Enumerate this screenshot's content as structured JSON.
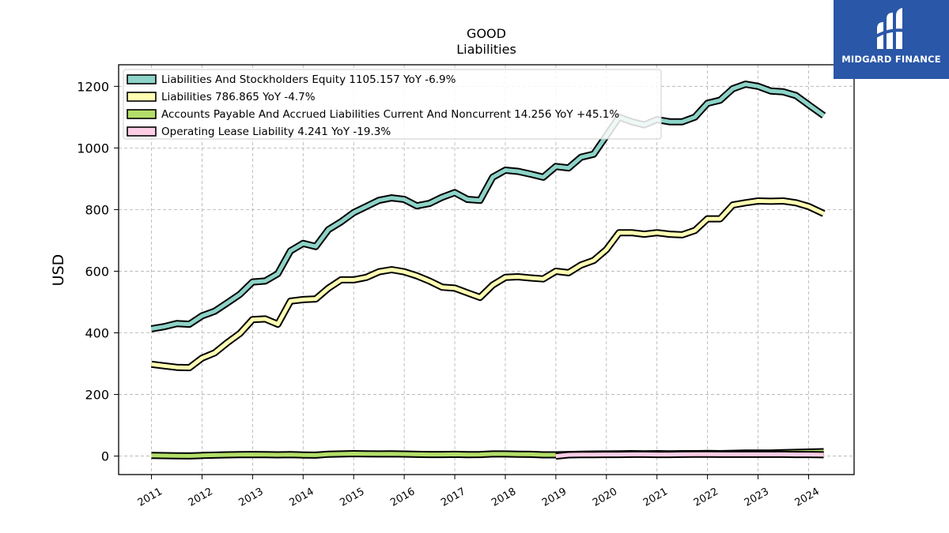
{
  "brand": {
    "name": "MIDGARD FINANCE",
    "color": "#2a57a7"
  },
  "chart_data": {
    "type": "line",
    "title": "GOOD",
    "subtitle": "Liabilities",
    "ylabel": "USD",
    "xlabel": "",
    "ylim": [
      -60,
      1270
    ],
    "xlim": [
      2010.35,
      2024.9
    ],
    "yticks": [
      0,
      200,
      400,
      600,
      800,
      1000,
      1200
    ],
    "xticks": [
      "2011",
      "2012",
      "2013",
      "2014",
      "2015",
      "2016",
      "2017",
      "2018",
      "2019",
      "2020",
      "2021",
      "2022",
      "2023",
      "2024"
    ],
    "grid": true,
    "legend_position": "top-left",
    "series": [
      {
        "name": "Liabilities And Stockholders Equity",
        "legend": "Liabilities And Stockholders Equity  1105.157 YoY -6.9%",
        "color": "#8dd3c7",
        "x": [
          2011.0,
          2011.25,
          2011.5,
          2011.75,
          2012.0,
          2012.25,
          2012.5,
          2012.75,
          2013.0,
          2013.25,
          2013.5,
          2013.75,
          2014.0,
          2014.25,
          2014.5,
          2014.75,
          2015.0,
          2015.25,
          2015.5,
          2015.75,
          2016.0,
          2016.25,
          2016.5,
          2016.75,
          2017.0,
          2017.25,
          2017.5,
          2017.75,
          2018.0,
          2018.25,
          2018.5,
          2018.75,
          2019.0,
          2019.25,
          2019.5,
          2019.75,
          2020.0,
          2020.25,
          2020.5,
          2020.75,
          2021.0,
          2021.25,
          2021.5,
          2021.75,
          2022.0,
          2022.25,
          2022.5,
          2022.75,
          2023.0,
          2023.25,
          2023.5,
          2023.75,
          2024.0,
          2024.3
        ],
        "values": [
          413,
          420,
          430,
          428,
          455,
          470,
          497,
          525,
          565,
          568,
          592,
          666,
          690,
          680,
          735,
          760,
          790,
          810,
          830,
          838,
          833,
          812,
          820,
          840,
          855,
          833,
          830,
          905,
          928,
          924,
          915,
          905,
          940,
          935,
          970,
          980,
          1040,
          1100,
          1085,
          1075,
          1092,
          1085,
          1085,
          1100,
          1145,
          1155,
          1192,
          1207,
          1200,
          1185,
          1182,
          1170,
          1140,
          1105
        ]
      },
      {
        "name": "Liabilities",
        "legend": "Liabilities  786.865 YoY -4.7%",
        "color": "#ffffb3",
        "x": [
          2011.0,
          2011.25,
          2011.5,
          2011.75,
          2012.0,
          2012.25,
          2012.5,
          2012.75,
          2013.0,
          2013.25,
          2013.5,
          2013.75,
          2014.0,
          2014.25,
          2014.5,
          2014.75,
          2015.0,
          2015.25,
          2015.5,
          2015.75,
          2016.0,
          2016.25,
          2016.5,
          2016.75,
          2017.0,
          2017.25,
          2017.5,
          2017.75,
          2018.0,
          2018.25,
          2018.5,
          2018.75,
          2019.0,
          2019.25,
          2019.5,
          2019.75,
          2020.0,
          2020.25,
          2020.5,
          2020.75,
          2021.0,
          2021.25,
          2021.5,
          2021.75,
          2022.0,
          2022.25,
          2022.5,
          2022.75,
          2023.0,
          2023.25,
          2023.5,
          2023.75,
          2024.0,
          2024.3
        ],
        "values": [
          298,
          293,
          288,
          287,
          318,
          335,
          368,
          398,
          443,
          445,
          428,
          503,
          508,
          510,
          545,
          572,
          572,
          580,
          598,
          605,
          598,
          585,
          568,
          548,
          545,
          530,
          515,
          555,
          580,
          582,
          578,
          575,
          600,
          595,
          620,
          635,
          670,
          725,
          725,
          720,
          725,
          720,
          718,
          732,
          770,
          770,
          815,
          822,
          828,
          827,
          828,
          822,
          810,
          787
        ]
      },
      {
        "name": "Accounts Payable And Accrued Liabilities Current And Noncurrent",
        "legend": "Accounts Payable And Accrued Liabilities Current And Noncurrent  14.256 YoY +45.1%",
        "color": "#b3de69",
        "x": [
          2011.0,
          2011.25,
          2011.5,
          2011.75,
          2012.0,
          2012.25,
          2012.5,
          2012.75,
          2013.0,
          2013.25,
          2013.5,
          2013.75,
          2014.0,
          2014.25,
          2014.5,
          2014.75,
          2015.0,
          2015.25,
          2015.5,
          2015.75,
          2016.0,
          2016.25,
          2016.5,
          2016.75,
          2017.0,
          2017.25,
          2017.5,
          2017.75,
          2018.0,
          2018.25,
          2018.5,
          2018.75,
          2019.0,
          2019.25,
          2019.5,
          2019.75,
          2020.0,
          2020.25,
          2020.5,
          2020.75,
          2021.0,
          2021.25,
          2021.5,
          2021.75,
          2022.0,
          2022.25,
          2022.5,
          2022.75,
          2023.0,
          2023.25,
          2023.5,
          2023.75,
          2024.0,
          2024.3
        ],
        "values": [
          2,
          1.5,
          1,
          0.5,
          2,
          3,
          4,
          4.5,
          5,
          4.5,
          4,
          4.5,
          3.5,
          3,
          6,
          7,
          8,
          7.5,
          7,
          7.5,
          6.5,
          5.5,
          5,
          5,
          5.5,
          4.5,
          5,
          7,
          7,
          6,
          5.5,
          4,
          4,
          5,
          6,
          6.5,
          7,
          7.5,
          8,
          7.5,
          8,
          7.5,
          8,
          8,
          8.5,
          8,
          9,
          10,
          10,
          10,
          11,
          12,
          13,
          14.3
        ]
      },
      {
        "name": "Operating Lease Liability",
        "legend": "Operating Lease Liability  4.241 YoY -19.3%",
        "color": "#fccde5",
        "x": [
          2019.0,
          2019.25,
          2019.5,
          2019.75,
          2020.0,
          2020.25,
          2020.5,
          2020.75,
          2021.0,
          2021.25,
          2021.5,
          2021.75,
          2022.0,
          2022.25,
          2022.5,
          2022.75,
          2023.0,
          2023.25,
          2023.5,
          2023.75,
          2024.0,
          2024.3
        ],
        "values": [
          0,
          4,
          4.5,
          4.5,
          5,
          5,
          5.5,
          5.5,
          5,
          5,
          5.5,
          6,
          6,
          5.5,
          5.5,
          5.5,
          5.5,
          5.5,
          5.5,
          5,
          5,
          4.2
        ]
      }
    ]
  }
}
